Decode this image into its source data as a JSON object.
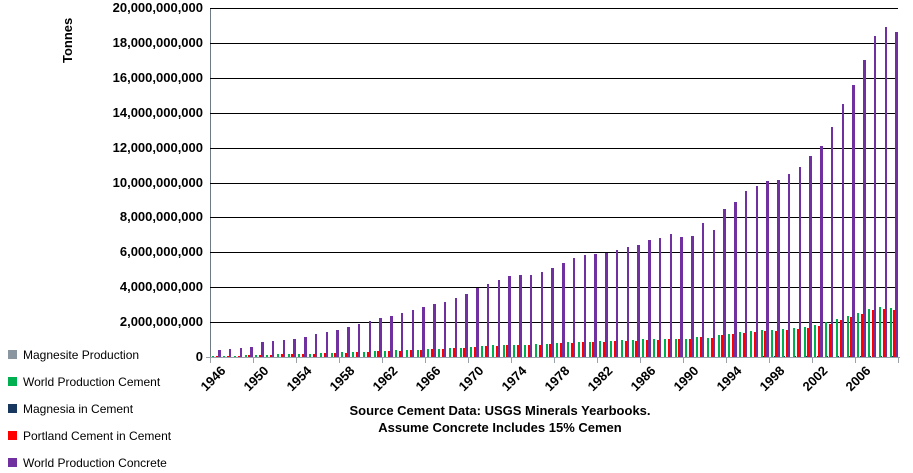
{
  "chart_data": {
    "type": "bar",
    "title": "",
    "ylabel": "Tonnes",
    "xlabel": "",
    "ylim": [
      0,
      20000000000
    ],
    "ytick_step": 2000000000,
    "grid": true,
    "legend_position": "bottom-left",
    "y_tick_labels": [
      "0",
      "2,000,000,000",
      "4,000,000,000",
      "6,000,000,000",
      "8,000,000,000",
      "10,000,000,000",
      "12,000,000,000",
      "14,000,000,000",
      "16,000,000,000",
      "18,000,000,000",
      "20,000,000,000"
    ],
    "x_tick_labels": [
      "1946",
      "1950",
      "1954",
      "1958",
      "1962",
      "1966",
      "1970",
      "1974",
      "1978",
      "1982",
      "1986",
      "1990",
      "1994",
      "1998",
      "2002",
      "2006"
    ],
    "year_start": 1946,
    "year_end": 2009,
    "units": "tonnes (values in billions)",
    "series": [
      {
        "name": "Magnesite Production",
        "color": "#8A97A0",
        "values_billion_tonnes": [
          0.004,
          0.004,
          0.004,
          0.005,
          0.005,
          0.005,
          0.005,
          0.005,
          0.006,
          0.006,
          0.006,
          0.006,
          0.006,
          0.007,
          0.007,
          0.007,
          0.007,
          0.008,
          0.008,
          0.008,
          0.008,
          0.008,
          0.009,
          0.009,
          0.009,
          0.009,
          0.01,
          0.01,
          0.01,
          0.01,
          0.01,
          0.011,
          0.011,
          0.011,
          0.011,
          0.012,
          0.012,
          0.012,
          0.012,
          0.012,
          0.013,
          0.013,
          0.013,
          0.013,
          0.014,
          0.014,
          0.014,
          0.014,
          0.015,
          0.015,
          0.015,
          0.016,
          0.016,
          0.017,
          0.017,
          0.018,
          0.018,
          0.019,
          0.02,
          0.021,
          0.022,
          0.024,
          0.025,
          0.026
        ]
      },
      {
        "name": "World Production Cement",
        "color": "#00B050",
        "values_billion_tonnes": [
          0.06,
          0.07,
          0.08,
          0.09,
          0.13,
          0.14,
          0.15,
          0.16,
          0.17,
          0.2,
          0.22,
          0.23,
          0.26,
          0.28,
          0.31,
          0.33,
          0.35,
          0.38,
          0.41,
          0.43,
          0.45,
          0.47,
          0.51,
          0.54,
          0.59,
          0.63,
          0.66,
          0.69,
          0.71,
          0.7,
          0.73,
          0.77,
          0.81,
          0.85,
          0.88,
          0.88,
          0.89,
          0.92,
          0.95,
          0.96,
          1.01,
          1.02,
          1.05,
          1.04,
          1.04,
          1.16,
          1.1,
          1.28,
          1.34,
          1.43,
          1.47,
          1.52,
          1.52,
          1.58,
          1.64,
          1.73,
          1.82,
          1.98,
          2.18,
          2.34,
          2.55,
          2.76,
          2.84,
          2.79
        ]
      },
      {
        "name": "Magnesia in Cement",
        "color": "#17375E",
        "values_billion_tonnes": [
          0.001,
          0.001,
          0.002,
          0.002,
          0.003,
          0.003,
          0.003,
          0.003,
          0.003,
          0.004,
          0.004,
          0.005,
          0.005,
          0.006,
          0.006,
          0.007,
          0.007,
          0.008,
          0.008,
          0.009,
          0.009,
          0.009,
          0.01,
          0.011,
          0.012,
          0.013,
          0.013,
          0.014,
          0.014,
          0.014,
          0.015,
          0.015,
          0.016,
          0.017,
          0.018,
          0.018,
          0.018,
          0.018,
          0.019,
          0.019,
          0.02,
          0.02,
          0.021,
          0.021,
          0.021,
          0.023,
          0.022,
          0.026,
          0.027,
          0.029,
          0.029,
          0.03,
          0.03,
          0.032,
          0.033,
          0.035,
          0.036,
          0.04,
          0.044,
          0.047,
          0.051,
          0.055,
          0.057,
          0.056
        ]
      },
      {
        "name": "Portland Cement in Cement",
        "color": "#FE0000",
        "values_billion_tonnes": [
          0.06,
          0.07,
          0.08,
          0.09,
          0.12,
          0.14,
          0.15,
          0.15,
          0.17,
          0.19,
          0.21,
          0.22,
          0.25,
          0.27,
          0.3,
          0.32,
          0.34,
          0.36,
          0.4,
          0.42,
          0.44,
          0.46,
          0.49,
          0.52,
          0.57,
          0.61,
          0.64,
          0.67,
          0.69,
          0.68,
          0.71,
          0.74,
          0.79,
          0.82,
          0.85,
          0.86,
          0.87,
          0.89,
          0.92,
          0.93,
          0.98,
          0.99,
          1.02,
          1.01,
          1.01,
          1.12,
          1.07,
          1.24,
          1.3,
          1.39,
          1.43,
          1.47,
          1.48,
          1.53,
          1.59,
          1.68,
          1.77,
          1.92,
          2.11,
          2.27,
          2.47,
          2.68,
          2.75,
          2.71
        ]
      },
      {
        "name": "World Production Concrete",
        "color": "#7030A0",
        "values_billion_tonnes": [
          0.43,
          0.48,
          0.53,
          0.57,
          0.85,
          0.93,
          1.0,
          1.05,
          1.13,
          1.33,
          1.45,
          1.52,
          1.7,
          1.89,
          2.09,
          2.23,
          2.35,
          2.5,
          2.72,
          2.87,
          3.03,
          3.15,
          3.37,
          3.6,
          3.96,
          4.17,
          4.4,
          4.63,
          4.7,
          4.69,
          4.89,
          5.1,
          5.41,
          5.67,
          5.87,
          5.89,
          5.95,
          6.13,
          6.3,
          6.4,
          6.7,
          6.8,
          7.03,
          6.9,
          6.93,
          7.7,
          7.3,
          8.5,
          8.9,
          9.5,
          9.8,
          10.1,
          10.13,
          10.5,
          10.9,
          11.5,
          12.1,
          13.2,
          14.5,
          15.6,
          17.0,
          18.4,
          18.9,
          18.6
        ]
      }
    ],
    "footnote_lines": [
      "Source Cement Data: USGS Minerals Yearbooks.",
      "Assume Concrete Includes 15% Cemen"
    ]
  },
  "legend": {
    "items": [
      "Magnesite Production",
      "World Production Cement",
      "Magnesia in Cement",
      "Portland Cement in Cement",
      "World Production Concrete"
    ]
  }
}
